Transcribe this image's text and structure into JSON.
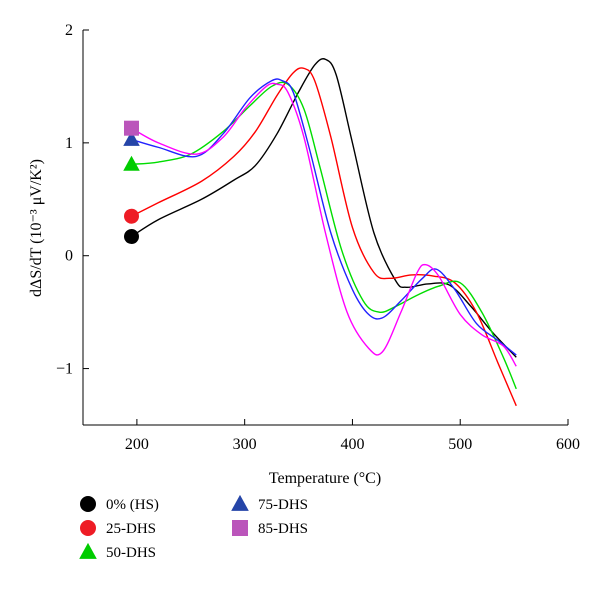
{
  "chart_data": {
    "type": "line",
    "title": "",
    "xlabel": "Temperature (°C)",
    "ylabel": "dΔS/dT (10⁻³ μV/K²)",
    "xlim": [
      150,
      600
    ],
    "ylim": [
      -1.5,
      2
    ],
    "xticks": [
      200,
      300,
      400,
      500,
      600
    ],
    "yticks": [
      -1,
      0,
      1,
      2
    ],
    "xtick_labels": [
      "200",
      "300",
      "400",
      "500",
      "600"
    ],
    "ytick_labels": [
      "−1",
      "0",
      "1",
      "2"
    ],
    "grid": false,
    "legend_position": "bottom",
    "series": [
      {
        "name": "0% (HS)",
        "color": "#000000",
        "marker": "circle",
        "marker_color": "#000000",
        "x": [
          195,
          220,
          260,
          290,
          310,
          330,
          350,
          365,
          375,
          385,
          400,
          420,
          440,
          450,
          470,
          490,
          510,
          530,
          552
        ],
        "y": [
          0.17,
          0.32,
          0.5,
          0.67,
          0.8,
          1.08,
          1.45,
          1.69,
          1.74,
          1.6,
          1.0,
          0.2,
          -0.22,
          -0.28,
          -0.25,
          -0.26,
          -0.45,
          -0.68,
          -0.9
        ]
      },
      {
        "name": "25-DHS",
        "color": "#ff0000",
        "marker": "circle",
        "marker_color": "#ee1c25",
        "x": [
          195,
          220,
          260,
          290,
          310,
          330,
          345,
          355,
          365,
          380,
          400,
          420,
          435,
          455,
          475,
          495,
          515,
          535,
          552
        ],
        "y": [
          0.35,
          0.47,
          0.66,
          0.88,
          1.1,
          1.42,
          1.62,
          1.66,
          1.55,
          1.05,
          0.25,
          -0.15,
          -0.2,
          -0.17,
          -0.18,
          -0.24,
          -0.5,
          -0.95,
          -1.33
        ]
      },
      {
        "name": "50-DHS",
        "color": "#00dd00",
        "marker": "triangle",
        "marker_color": "#00cc00",
        "x": [
          195,
          220,
          250,
          280,
          305,
          325,
          340,
          355,
          370,
          390,
          410,
          425,
          440,
          460,
          480,
          500,
          520,
          540,
          552
        ],
        "y": [
          0.81,
          0.83,
          0.9,
          1.1,
          1.33,
          1.5,
          1.52,
          1.3,
          0.78,
          0.05,
          -0.4,
          -0.5,
          -0.45,
          -0.35,
          -0.27,
          -0.24,
          -0.5,
          -0.9,
          -1.18
        ]
      },
      {
        "name": "75-DHS",
        "color": "#2222ff",
        "marker": "triangle",
        "marker_color": "#2545a8",
        "x": [
          195,
          220,
          255,
          280,
          305,
          325,
          335,
          345,
          360,
          380,
          400,
          415,
          428,
          445,
          465,
          478,
          495,
          515,
          535,
          552
        ],
        "y": [
          1.03,
          0.96,
          0.88,
          1.08,
          1.4,
          1.55,
          1.55,
          1.45,
          0.95,
          0.2,
          -0.3,
          -0.52,
          -0.55,
          -0.4,
          -0.2,
          -0.12,
          -0.3,
          -0.6,
          -0.75,
          -0.88
        ]
      },
      {
        "name": "85-DHS",
        "color": "#ff00ff",
        "marker": "square",
        "marker_color": "#bb55bb",
        "x": [
          195,
          220,
          255,
          280,
          300,
          320,
          330,
          340,
          355,
          375,
          395,
          415,
          428,
          445,
          460,
          468,
          480,
          500,
          520,
          540,
          552
        ],
        "y": [
          1.13,
          1.0,
          0.9,
          1.05,
          1.3,
          1.5,
          1.52,
          1.45,
          1.05,
          0.2,
          -0.5,
          -0.82,
          -0.85,
          -0.5,
          -0.15,
          -0.08,
          -0.18,
          -0.52,
          -0.7,
          -0.8,
          -0.98
        ]
      }
    ],
    "legend_columns": [
      [
        "0% (HS)",
        "25-DHS",
        "50-DHS"
      ],
      [
        "75-DHS",
        "85-DHS"
      ]
    ]
  }
}
